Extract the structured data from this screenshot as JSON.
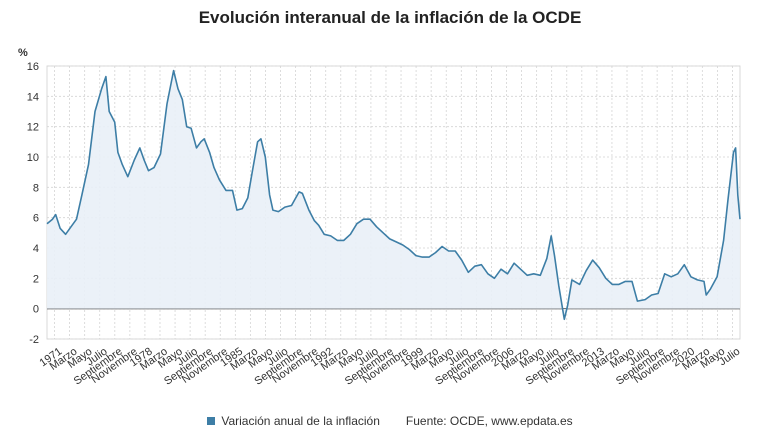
{
  "chart_data": {
    "type": "line",
    "title": "Evolución interanual de la inflación de la OCDE",
    "ylabel": "%",
    "ylim": [
      -2,
      16
    ],
    "yticks": [
      -2,
      0,
      2,
      4,
      6,
      8,
      10,
      12,
      14,
      16
    ],
    "xrange": [
      "1970-01",
      "2022-12"
    ],
    "grid": true,
    "legend_position": "bottom",
    "x_tick_labels": [
      "1971",
      "Marzo",
      "Mayo",
      "Julio",
      "Septiembre",
      "Noviembre",
      "1978",
      "Marzo",
      "Mayo",
      "Julio",
      "Septiembre",
      "Noviembre",
      "1985",
      "Marzo",
      "Mayo",
      "Julio",
      "Septiembre",
      "Noviembre",
      "1992",
      "Marzo",
      "Mayo",
      "Julio",
      "Septiembre",
      "Noviembre",
      "1999",
      "Marzo",
      "Mayo",
      "Julio",
      "Septiembre",
      "Noviembre",
      "2006",
      "Marzo",
      "Mayo",
      "Julio",
      "Septiembre",
      "Noviembre",
      "2013",
      "Marzo",
      "Mayo",
      "Julio",
      "Septiembre",
      "Noviembre",
      "2020",
      "Marzo",
      "Mayo",
      "Julio"
    ],
    "series": [
      {
        "name": "Variación anual de la inflación",
        "color": "#3d7ea6",
        "points": [
          [
            "1970-01",
            5.6
          ],
          [
            "1970-06",
            5.9
          ],
          [
            "1970-09",
            6.2
          ],
          [
            "1971-01",
            5.3
          ],
          [
            "1971-06",
            4.9
          ],
          [
            "1971-10",
            5.3
          ],
          [
            "1972-04",
            5.9
          ],
          [
            "1972-09",
            7.5
          ],
          [
            "1973-03",
            9.5
          ],
          [
            "1973-09",
            13.0
          ],
          [
            "1974-03",
            14.5
          ],
          [
            "1974-07",
            15.3
          ],
          [
            "1974-10",
            13.0
          ],
          [
            "1975-03",
            12.3
          ],
          [
            "1975-06",
            10.3
          ],
          [
            "1975-10",
            9.5
          ],
          [
            "1976-03",
            8.7
          ],
          [
            "1976-09",
            9.8
          ],
          [
            "1977-02",
            10.6
          ],
          [
            "1977-06",
            9.8
          ],
          [
            "1977-10",
            9.1
          ],
          [
            "1978-03",
            9.3
          ],
          [
            "1978-09",
            10.2
          ],
          [
            "1979-03",
            13.5
          ],
          [
            "1979-09",
            15.7
          ],
          [
            "1980-01",
            14.5
          ],
          [
            "1980-05",
            13.8
          ],
          [
            "1980-09",
            12.0
          ],
          [
            "1981-01",
            11.9
          ],
          [
            "1981-06",
            10.6
          ],
          [
            "1981-10",
            11.0
          ],
          [
            "1982-01",
            11.2
          ],
          [
            "1982-06",
            10.3
          ],
          [
            "1982-10",
            9.3
          ],
          [
            "1983-03",
            8.5
          ],
          [
            "1983-09",
            7.8
          ],
          [
            "1984-03",
            7.8
          ],
          [
            "1984-07",
            6.5
          ],
          [
            "1984-12",
            6.6
          ],
          [
            "1985-05",
            7.3
          ],
          [
            "1985-09",
            9.0
          ],
          [
            "1986-02",
            11.0
          ],
          [
            "1986-05",
            11.2
          ],
          [
            "1986-09",
            10.0
          ],
          [
            "1987-01",
            7.5
          ],
          [
            "1987-04",
            6.5
          ],
          [
            "1987-09",
            6.4
          ],
          [
            "1988-03",
            6.7
          ],
          [
            "1988-09",
            6.8
          ],
          [
            "1989-04",
            7.7
          ],
          [
            "1989-07",
            7.6
          ],
          [
            "1990-01",
            6.5
          ],
          [
            "1990-06",
            5.8
          ],
          [
            "1990-10",
            5.5
          ],
          [
            "1991-03",
            4.9
          ],
          [
            "1991-09",
            4.8
          ],
          [
            "1992-03",
            4.5
          ],
          [
            "1992-09",
            4.5
          ],
          [
            "1993-03",
            4.9
          ],
          [
            "1993-09",
            5.6
          ],
          [
            "1994-03",
            5.9
          ],
          [
            "1994-09",
            5.9
          ],
          [
            "1995-03",
            5.4
          ],
          [
            "1995-09",
            5.0
          ],
          [
            "1996-03",
            4.6
          ],
          [
            "1996-09",
            4.4
          ],
          [
            "1997-03",
            4.2
          ],
          [
            "1997-09",
            3.9
          ],
          [
            "1998-03",
            3.5
          ],
          [
            "1998-09",
            3.4
          ],
          [
            "1999-03",
            3.4
          ],
          [
            "1999-09",
            3.7
          ],
          [
            "2000-03",
            4.1
          ],
          [
            "2000-09",
            3.8
          ],
          [
            "2001-03",
            3.8
          ],
          [
            "2001-09",
            3.2
          ],
          [
            "2002-03",
            2.4
          ],
          [
            "2002-09",
            2.8
          ],
          [
            "2003-03",
            2.9
          ],
          [
            "2003-09",
            2.3
          ],
          [
            "2004-03",
            2.0
          ],
          [
            "2004-09",
            2.6
          ],
          [
            "2005-03",
            2.3
          ],
          [
            "2005-09",
            3.0
          ],
          [
            "2006-03",
            2.6
          ],
          [
            "2006-09",
            2.2
          ],
          [
            "2007-03",
            2.3
          ],
          [
            "2007-09",
            2.2
          ],
          [
            "2008-03",
            3.3
          ],
          [
            "2008-07",
            4.8
          ],
          [
            "2008-10",
            3.5
          ],
          [
            "2009-02",
            1.5
          ],
          [
            "2009-07",
            -0.7
          ],
          [
            "2009-10",
            0.2
          ],
          [
            "2010-02",
            1.9
          ],
          [
            "2010-09",
            1.6
          ],
          [
            "2011-03",
            2.5
          ],
          [
            "2011-09",
            3.2
          ],
          [
            "2012-03",
            2.7
          ],
          [
            "2012-09",
            2.0
          ],
          [
            "2013-03",
            1.6
          ],
          [
            "2013-09",
            1.6
          ],
          [
            "2014-03",
            1.8
          ],
          [
            "2014-09",
            1.8
          ],
          [
            "2015-02",
            0.5
          ],
          [
            "2015-09",
            0.6
          ],
          [
            "2016-03",
            0.9
          ],
          [
            "2016-09",
            1.0
          ],
          [
            "2017-03",
            2.3
          ],
          [
            "2017-09",
            2.1
          ],
          [
            "2018-03",
            2.3
          ],
          [
            "2018-09",
            2.9
          ],
          [
            "2019-03",
            2.1
          ],
          [
            "2019-09",
            1.9
          ],
          [
            "2020-03",
            1.8
          ],
          [
            "2020-05",
            0.9
          ],
          [
            "2020-09",
            1.3
          ],
          [
            "2021-03",
            2.1
          ],
          [
            "2021-09",
            4.5
          ],
          [
            "2022-01",
            7.2
          ],
          [
            "2022-06",
            10.3
          ],
          [
            "2022-08",
            10.6
          ],
          [
            "2022-10",
            7.5
          ],
          [
            "2022-12",
            5.9
          ]
        ]
      }
    ]
  },
  "legend": {
    "series_label": "Variación anual de la inflación",
    "source": "Fuente: OCDE, www.epdata.es"
  }
}
